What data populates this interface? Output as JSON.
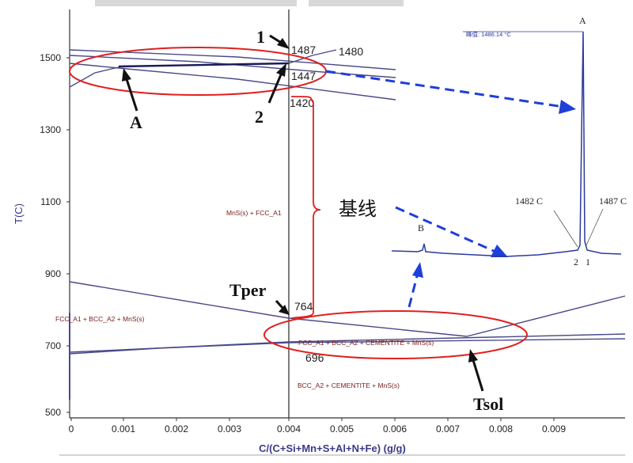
{
  "axes": {
    "ylabel": "T(C)",
    "xlabel": "C/(C+Si+Mn+S+Al+N+Fe) (g/g)",
    "yticks": [
      "1500",
      "1300",
      "1100",
      "900",
      "700",
      "500"
    ],
    "xticks": [
      "0",
      "0.001",
      "0.002",
      "0.003",
      "0.004",
      "0.005",
      "0.006",
      "0.007",
      "0.008",
      "0.009"
    ]
  },
  "values": {
    "t1487": "1487",
    "t1480": "1480",
    "t1447": "1447",
    "t1420": "1420",
    "t764": "764",
    "t696": "696"
  },
  "regions": {
    "mns_fcc": "MnS(s) + FCC_A1",
    "fcc_bcc_mns": "FCC_A1 + BCC_A2 + MnS(s)",
    "fcc_bcc_cem_mns": "FCC_A1 + BCC_A2 + CEMENTITE + MnS(s)",
    "bcc_cem_mns": "BCC_A2 + CEMENTITE + MnS(s)"
  },
  "annotations": {
    "label_1": "1",
    "label_2": "2",
    "label_A": "A",
    "baseline": "基线",
    "tper": "Tper",
    "tsol": "Tsol"
  },
  "dsc": {
    "peak_label": "A",
    "peak_value": "峰值: 1486.14 °C",
    "label_1482": "1482 C",
    "label_1487": "1487 C",
    "label_B": "B",
    "label_2": "2",
    "label_1": "1"
  },
  "colors": {
    "phase_line": "#4a4a8a",
    "dsc_line": "#2b3a9f",
    "ellipse": "#e02020",
    "arrow": "#1e3fd8",
    "text": "#111111",
    "region_text": "#7a2020"
  }
}
